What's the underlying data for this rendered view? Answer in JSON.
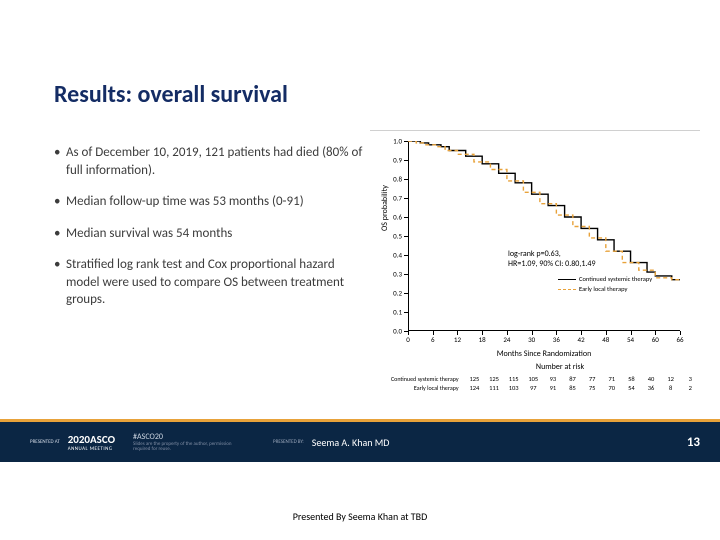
{
  "slide": {
    "title": "Results: overall survival",
    "bullets": [
      "As of December 10, 2019, 121 patients had died (80% of full information).",
      "Median follow-up time was 53 months (0-91)",
      "Median survival was 54 months",
      "Stratified log rank test and Cox proportional hazard model were used to compare OS between treatment groups."
    ]
  },
  "chart": {
    "type": "kaplan-meier",
    "x_axis": {
      "min": 0,
      "max": 66,
      "ticks": [
        0,
        6,
        12,
        18,
        24,
        30,
        36,
        42,
        48,
        54,
        60,
        66
      ],
      "title": "Months Since Randomization"
    },
    "y_axis": {
      "min": 0,
      "max": 1.0,
      "ticks": [
        0.0,
        0.1,
        0.2,
        0.3,
        0.4,
        0.5,
        0.6,
        0.7,
        0.8,
        0.9,
        1.0
      ],
      "title": "OS probability"
    },
    "series": [
      {
        "name": "Continued systemic therapy",
        "color": "#000000",
        "dash": "solid",
        "points": [
          [
            0,
            1.0
          ],
          [
            3,
            0.99
          ],
          [
            5,
            0.98
          ],
          [
            8,
            0.97
          ],
          [
            10,
            0.95
          ],
          [
            14,
            0.92
          ],
          [
            18,
            0.88
          ],
          [
            22,
            0.83
          ],
          [
            26,
            0.78
          ],
          [
            30,
            0.72
          ],
          [
            34,
            0.66
          ],
          [
            38,
            0.6
          ],
          [
            42,
            0.54
          ],
          [
            46,
            0.48
          ],
          [
            50,
            0.42
          ],
          [
            54,
            0.36
          ],
          [
            58,
            0.31
          ],
          [
            60,
            0.29
          ],
          [
            64,
            0.27
          ],
          [
            66,
            0.27
          ]
        ]
      },
      {
        "name": "Early local therapy",
        "color": "#e8a23a",
        "dash": "dashed",
        "points": [
          [
            0,
            1.0
          ],
          [
            2,
            0.99
          ],
          [
            4,
            0.98
          ],
          [
            7,
            0.97
          ],
          [
            9,
            0.95
          ],
          [
            12,
            0.93
          ],
          [
            16,
            0.89
          ],
          [
            20,
            0.85
          ],
          [
            24,
            0.79
          ],
          [
            28,
            0.73
          ],
          [
            32,
            0.67
          ],
          [
            36,
            0.61
          ],
          [
            40,
            0.55
          ],
          [
            44,
            0.49
          ],
          [
            48,
            0.42
          ],
          [
            52,
            0.36
          ],
          [
            56,
            0.32
          ],
          [
            60,
            0.28
          ],
          [
            64,
            0.27
          ],
          [
            66,
            0.27
          ]
        ]
      }
    ],
    "stats": {
      "line1": "log-rank p=0.63,",
      "line2": "HR=1.09, 90% CI: 0.80,1.49"
    },
    "legend": [
      {
        "label": "Continued systemic therapy",
        "color": "#000000",
        "dash": "solid"
      },
      {
        "label": "Early local therapy",
        "color": "#e8a23a",
        "dash": "dashed"
      }
    ],
    "risk_table": {
      "title": "Number at risk",
      "rows": [
        {
          "label": "Continued systemic therapy",
          "values": [
            "125",
            "125",
            "115",
            "105",
            "93",
            "87",
            "77",
            "71",
            "58",
            "40",
            "12",
            "3"
          ]
        },
        {
          "label": "Early local therapy",
          "values": [
            "124",
            "111",
            "103",
            " 97",
            " 91",
            " 85",
            " 75",
            " 70",
            " 54",
            " 36",
            " 8",
            " 2"
          ]
        }
      ]
    }
  },
  "footer": {
    "presented_by_small": "PRESENTED AT",
    "logo_year": "2020",
    "logo_text": "ASCO",
    "logo_sub": "ANNUAL MEETING",
    "hashtag": "#ASCO20",
    "subhash": "Slides are the property of the author, permission required for reuse.",
    "presented_label": "PRESENTED BY:",
    "presenter": "Seema A. Khan MD",
    "slide_num": "13"
  },
  "caption": "Presented By Seema Khan at TBD",
  "colors": {
    "title": "#142c64",
    "footer_bg": "#0b2644",
    "accent": "#e8a23a",
    "body_text": "#3c3c3c"
  }
}
